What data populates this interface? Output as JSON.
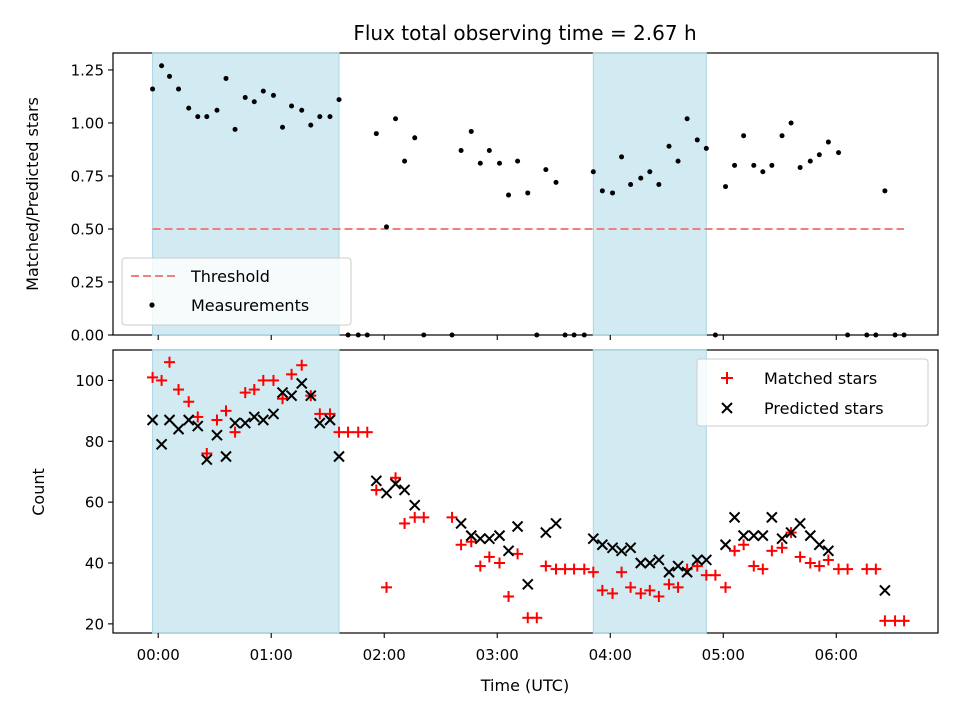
{
  "chart_data": {
    "title": "Flux total observing time = 2.67 h",
    "xlabel": "Time (UTC)",
    "x_unit": "hours",
    "xlim": [
      -0.4,
      6.9
    ],
    "xticks": [
      0,
      1,
      2,
      3,
      4,
      5,
      6
    ],
    "xtick_labels": [
      "00:00",
      "01:00",
      "02:00",
      "03:00",
      "04:00",
      "05:00",
      "06:00"
    ],
    "observing_windows": [
      [
        -0.05,
        1.6
      ],
      [
        3.85,
        4.85
      ]
    ],
    "window_color": "#add8e6",
    "panels": [
      {
        "type": "scatter",
        "ylabel": "Matched/Predicted stars",
        "ylim": [
          0,
          1.33
        ],
        "yticks": [
          0,
          0.25,
          0.5,
          0.75,
          1.0,
          1.25
        ],
        "ytick_labels": [
          "0.00",
          "0.25",
          "0.50",
          "0.75",
          "1.00",
          "1.25"
        ],
        "legend_position": "lower-left",
        "threshold": {
          "name": "Threshold",
          "value": 0.5,
          "x_range": [
            -0.05,
            6.6
          ],
          "color": "#f08080"
        },
        "series": [
          {
            "name": "Measurements",
            "color": "#000000",
            "marker": "dot",
            "x": [
              -0.05,
              0.03,
              0.1,
              0.18,
              0.27,
              0.35,
              0.43,
              0.52,
              0.6,
              0.68,
              0.77,
              0.85,
              0.93,
              1.02,
              1.1,
              1.18,
              1.27,
              1.35,
              1.43,
              1.52,
              1.6,
              1.68,
              1.77,
              1.85,
              1.93,
              2.02,
              2.1,
              2.18,
              2.27,
              2.35,
              2.6,
              2.68,
              2.77,
              2.85,
              2.93,
              3.02,
              3.1,
              3.18,
              3.27,
              3.35,
              3.43,
              3.52,
              3.6,
              3.68,
              3.77,
              3.85,
              3.93,
              4.02,
              4.1,
              4.18,
              4.27,
              4.35,
              4.43,
              4.52,
              4.6,
              4.68,
              4.77,
              4.85,
              4.93,
              5.02,
              5.1,
              5.18,
              5.27,
              5.35,
              5.43,
              5.52,
              5.6,
              5.68,
              5.77,
              5.85,
              5.93,
              6.02,
              6.1,
              6.27,
              6.35,
              6.43,
              6.52,
              6.6
            ],
            "y": [
              1.16,
              1.27,
              1.22,
              1.16,
              1.07,
              1.03,
              1.03,
              1.06,
              1.21,
              0.97,
              1.12,
              1.1,
              1.15,
              1.13,
              0.98,
              1.08,
              1.06,
              0.99,
              1.03,
              1.03,
              1.11,
              0,
              0,
              0,
              0.95,
              0.51,
              1.02,
              0.82,
              0.93,
              0,
              0,
              0.87,
              0.96,
              0.81,
              0.87,
              0.81,
              0.66,
              0.82,
              0.67,
              0,
              0.78,
              0.72,
              0,
              0,
              0,
              0.77,
              0.68,
              0.67,
              0.84,
              0.71,
              0.74,
              0.77,
              0.71,
              0.89,
              0.82,
              1.02,
              0.92,
              0.88,
              0,
              0.7,
              0.8,
              0.94,
              0.8,
              0.77,
              0.8,
              0.94,
              1.0,
              0.79,
              0.82,
              0.85,
              0.91,
              0.86,
              0,
              0,
              0,
              0.68,
              0,
              0
            ]
          }
        ]
      },
      {
        "type": "scatter",
        "ylabel": "Count",
        "ylim": [
          17,
          110
        ],
        "yticks": [
          20,
          40,
          60,
          80,
          100
        ],
        "ytick_labels": [
          "20",
          "40",
          "60",
          "80",
          "100"
        ],
        "legend_position": "top-right",
        "series": [
          {
            "name": "Matched stars",
            "color": "#ff0000",
            "marker": "plus",
            "x": [
              -0.05,
              0.03,
              0.1,
              0.18,
              0.27,
              0.35,
              0.43,
              0.52,
              0.6,
              0.68,
              0.77,
              0.85,
              0.93,
              1.02,
              1.1,
              1.18,
              1.27,
              1.35,
              1.43,
              1.52,
              1.6,
              1.68,
              1.77,
              1.85,
              1.93,
              2.02,
              2.1,
              2.18,
              2.27,
              2.35,
              2.6,
              2.68,
              2.77,
              2.85,
              2.93,
              3.02,
              3.1,
              3.18,
              3.27,
              3.35,
              3.43,
              3.52,
              3.6,
              3.68,
              3.77,
              3.85,
              3.93,
              4.02,
              4.1,
              4.18,
              4.27,
              4.35,
              4.43,
              4.52,
              4.6,
              4.68,
              4.77,
              4.85,
              4.93,
              5.02,
              5.1,
              5.18,
              5.27,
              5.35,
              5.43,
              5.52,
              5.6,
              5.68,
              5.77,
              5.85,
              5.93,
              6.02,
              6.1,
              6.27,
              6.35,
              6.43,
              6.52,
              6.6
            ],
            "y": [
              101,
              100,
              106,
              97,
              93,
              88,
              76,
              87,
              90,
              83,
              96,
              97,
              100,
              100,
              94,
              102,
              105,
              95,
              89,
              89,
              83,
              83,
              83,
              83,
              64,
              32,
              68,
              53,
              55,
              55,
              55,
              46,
              47,
              39,
              42,
              40,
              29,
              43,
              22,
              22,
              39,
              38,
              38,
              38,
              38,
              37,
              31,
              30,
              37,
              32,
              30,
              31,
              29,
              33,
              32,
              38,
              39,
              36,
              36,
              32,
              44,
              46,
              39,
              38,
              44,
              45,
              50,
              42,
              40,
              39,
              41,
              38,
              38,
              38,
              38,
              21,
              21,
              21
            ]
          },
          {
            "name": "Predicted stars",
            "color": "#000000",
            "marker": "cross",
            "x": [
              -0.05,
              0.03,
              0.1,
              0.18,
              0.27,
              0.35,
              0.43,
              0.52,
              0.6,
              0.68,
              0.77,
              0.85,
              0.93,
              1.02,
              1.1,
              1.18,
              1.27,
              1.35,
              1.43,
              1.52,
              1.6,
              1.93,
              2.02,
              2.1,
              2.18,
              2.27,
              2.68,
              2.77,
              2.85,
              2.93,
              3.02,
              3.1,
              3.18,
              3.27,
              3.43,
              3.52,
              3.85,
              3.93,
              4.02,
              4.1,
              4.18,
              4.27,
              4.35,
              4.43,
              4.52,
              4.6,
              4.68,
              4.77,
              4.85,
              5.02,
              5.1,
              5.18,
              5.27,
              5.35,
              5.43,
              5.52,
              5.6,
              5.68,
              5.77,
              5.85,
              5.93,
              6.43
            ],
            "y": [
              87,
              79,
              87,
              84,
              87,
              85,
              74,
              82,
              75,
              86,
              86,
              88,
              87,
              89,
              96,
              95,
              99,
              95,
              86,
              87,
              75,
              67,
              63,
              66,
              64,
              59,
              53,
              49,
              48,
              48,
              49,
              44,
              52,
              33,
              50,
              53,
              48,
              46,
              45,
              44,
              45,
              40,
              40,
              41,
              37,
              39,
              37,
              41,
              41,
              46,
              55,
              49,
              49,
              49,
              55,
              48,
              50,
              53,
              49,
              46,
              44,
              31
            ]
          }
        ]
      }
    ]
  }
}
